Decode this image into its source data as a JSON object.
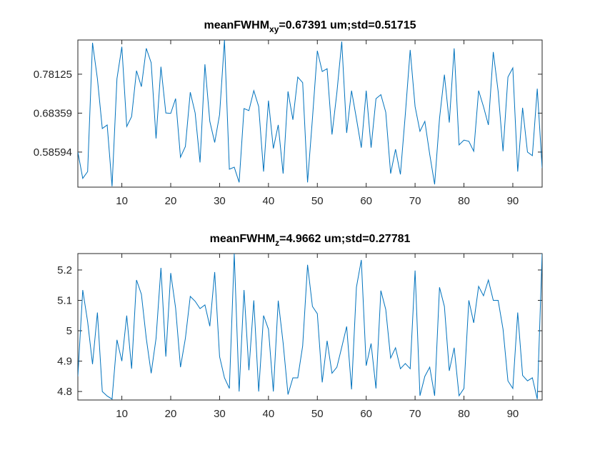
{
  "chart_data": [
    {
      "type": "line",
      "title_main": "meanFWHM",
      "title_sub": "xy",
      "title_rest": "=0.67391 um;std=0.51715",
      "x": [
        1,
        2,
        3,
        4,
        5,
        6,
        7,
        8,
        9,
        10,
        11,
        12,
        13,
        14,
        15,
        16,
        17,
        18,
        19,
        20,
        21,
        22,
        23,
        24,
        25,
        26,
        27,
        28,
        29,
        30,
        31,
        32,
        33,
        34,
        35,
        36,
        37,
        38,
        39,
        40,
        41,
        42,
        43,
        44,
        45,
        46,
        47,
        48,
        49,
        50,
        51,
        52,
        53,
        54,
        55,
        56,
        57,
        58,
        59,
        60,
        61,
        62,
        63,
        64,
        65,
        66,
        67,
        68,
        69,
        70,
        71,
        72,
        73,
        74,
        75,
        76,
        77,
        78,
        79,
        80,
        81,
        82,
        83,
        84,
        85,
        86,
        87,
        88,
        89,
        90,
        91,
        92,
        93,
        94,
        95,
        96
      ],
      "series": [
        {
          "color": "#0072bd",
          "values": [
            0.586,
            0.52,
            0.537,
            0.86,
            0.77,
            0.645,
            0.654,
            0.5,
            0.77,
            0.85,
            0.65,
            0.675,
            0.79,
            0.75,
            0.846,
            0.81,
            0.62,
            0.8,
            0.684,
            0.683,
            0.72,
            0.573,
            0.6,
            0.736,
            0.684,
            0.56,
            0.806,
            0.663,
            0.61,
            0.68,
            0.867,
            0.543,
            0.548,
            0.51,
            0.695,
            0.69,
            0.74,
            0.7,
            0.537,
            0.715,
            0.595,
            0.654,
            0.532,
            0.738,
            0.667,
            0.774,
            0.76,
            0.51,
            0.67,
            0.84,
            0.788,
            0.795,
            0.63,
            0.735,
            0.863,
            0.634,
            0.74,
            0.67,
            0.597,
            0.74,
            0.597,
            0.72,
            0.73,
            0.686,
            0.532,
            0.593,
            0.53,
            0.68,
            0.842,
            0.7,
            0.638,
            0.663,
            0.58,
            0.505,
            0.67,
            0.78,
            0.66,
            0.846,
            0.604,
            0.616,
            0.613,
            0.588,
            0.74,
            0.7,
            0.654,
            0.837,
            0.738,
            0.588,
            0.774,
            0.797,
            0.537,
            0.697,
            0.586,
            0.577,
            0.745,
            0.546
          ]
        }
      ],
      "xlim": [
        1,
        96
      ],
      "xticks": [
        10,
        20,
        30,
        40,
        50,
        60,
        70,
        80,
        90
      ],
      "ylim": [
        0.498,
        0.867
      ],
      "yticks": [
        0.58594,
        0.68359,
        0.78125
      ],
      "grid": false
    },
    {
      "type": "line",
      "title_main": "meanFWHM",
      "title_sub": "z",
      "title_rest": "=4.9662 um;std=0.27781",
      "x": [
        1,
        2,
        3,
        4,
        5,
        6,
        7,
        8,
        9,
        10,
        11,
        12,
        13,
        14,
        15,
        16,
        17,
        18,
        19,
        20,
        21,
        22,
        23,
        24,
        25,
        26,
        27,
        28,
        29,
        30,
        31,
        32,
        33,
        34,
        35,
        36,
        37,
        38,
        39,
        40,
        41,
        42,
        43,
        44,
        45,
        46,
        47,
        48,
        49,
        50,
        51,
        52,
        53,
        54,
        55,
        56,
        57,
        58,
        59,
        60,
        61,
        62,
        63,
        64,
        65,
        66,
        67,
        68,
        69,
        70,
        71,
        72,
        73,
        74,
        75,
        76,
        77,
        78,
        79,
        80,
        81,
        82,
        83,
        84,
        85,
        86,
        87,
        88,
        89,
        90,
        91,
        92,
        93,
        94,
        95,
        96
      ],
      "series": [
        {
          "color": "#0072bd",
          "values": [
            4.85,
            5.134,
            5.03,
            4.89,
            5.06,
            4.8,
            4.785,
            4.775,
            4.97,
            4.9,
            5.05,
            4.875,
            5.167,
            5.12,
            4.975,
            4.86,
            4.975,
            5.207,
            4.915,
            5.19,
            5.075,
            4.88,
            4.975,
            5.113,
            5.097,
            5.073,
            5.085,
            5.015,
            5.193,
            4.915,
            4.845,
            4.81,
            5.254,
            4.8,
            5.134,
            4.87,
            5.1,
            4.8,
            5.05,
            5.005,
            4.8,
            5.099,
            4.96,
            4.79,
            4.845,
            4.845,
            4.95,
            5.217,
            5.08,
            5.056,
            4.83,
            4.967,
            4.86,
            4.88,
            4.946,
            5.014,
            4.807,
            5.143,
            5.233,
            4.885,
            4.958,
            4.81,
            5.132,
            5.07,
            4.91,
            4.944,
            4.875,
            4.892,
            4.875,
            5.198,
            4.786,
            4.85,
            4.88,
            4.786,
            5.143,
            5.08,
            4.868,
            4.944,
            4.786,
            4.81,
            5.1,
            5.026,
            5.146,
            5.115,
            5.167,
            5.1,
            5.1,
            5.005,
            4.835,
            4.81,
            5.06,
            4.853,
            4.835,
            4.845,
            4.775,
            5.254
          ]
        }
      ],
      "xlim": [
        1,
        96
      ],
      "xticks": [
        10,
        20,
        30,
        40,
        50,
        60,
        70,
        80,
        90
      ],
      "ylim": [
        4.772,
        5.254
      ],
      "yticks": [
        4.8,
        4.9,
        5,
        5.1,
        5.2
      ],
      "grid": false
    }
  ]
}
